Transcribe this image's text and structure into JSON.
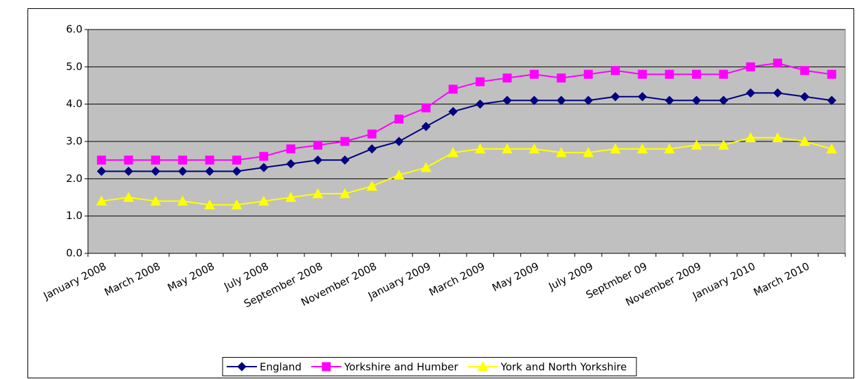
{
  "chart_data": {
    "type": "line",
    "categories": [
      "January 2008",
      null,
      "March 2008",
      null,
      "May 2008",
      null,
      "July 2008",
      null,
      "September 2008",
      null,
      "November 2008",
      null,
      "January 2009",
      null,
      "March 2009",
      null,
      "May 2009",
      null,
      "July 2009",
      null,
      "Septmber 09",
      null,
      "November 2009",
      null,
      "January 2010",
      null,
      "March 2010",
      null
    ],
    "series": [
      {
        "name": "England",
        "color": "#000080",
        "marker": "diamond",
        "values": [
          2.2,
          2.2,
          2.2,
          2.2,
          2.2,
          2.2,
          2.3,
          2.4,
          2.5,
          2.5,
          2.8,
          3.0,
          3.4,
          3.8,
          4.0,
          4.1,
          4.1,
          4.1,
          4.1,
          4.2,
          4.2,
          4.1,
          4.1,
          4.1,
          4.3,
          4.3,
          4.2,
          4.1
        ]
      },
      {
        "name": "Yorkshire and Humber",
        "color": "#FF00FF",
        "marker": "square",
        "values": [
          2.5,
          2.5,
          2.5,
          2.5,
          2.5,
          2.5,
          2.6,
          2.8,
          2.9,
          3.0,
          3.2,
          3.6,
          3.9,
          4.4,
          4.6,
          4.7,
          4.8,
          4.7,
          4.8,
          4.9,
          4.8,
          4.8,
          4.8,
          4.8,
          5.0,
          5.1,
          4.9,
          4.8
        ]
      },
      {
        "name": "York and North Yorkshire",
        "color": "#FFFF00",
        "marker": "triangle",
        "values": [
          1.4,
          1.5,
          1.4,
          1.4,
          1.3,
          1.3,
          1.4,
          1.5,
          1.6,
          1.6,
          1.8,
          2.1,
          2.3,
          2.7,
          2.8,
          2.8,
          2.8,
          2.7,
          2.7,
          2.8,
          2.8,
          2.8,
          2.9,
          2.9,
          3.1,
          3.1,
          3.0,
          2.8
        ]
      }
    ],
    "ylim": [
      0,
      6
    ],
    "yticks": [
      {
        "value": 0,
        "label": "0.0"
      },
      {
        "value": 1,
        "label": "1.0"
      },
      {
        "value": 2,
        "label": "2.0"
      },
      {
        "value": 3,
        "label": "3.0"
      },
      {
        "value": 4,
        "label": "4.0"
      },
      {
        "value": 5,
        "label": "5.0"
      },
      {
        "value": 6,
        "label": "6.0"
      }
    ],
    "grid": true,
    "plot_background": "#C0C0C0",
    "legend": "bottom"
  }
}
